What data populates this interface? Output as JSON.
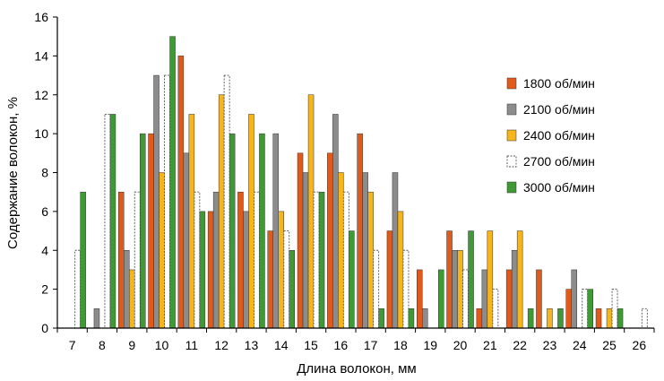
{
  "chart_data": {
    "type": "bar",
    "title": "",
    "xlabel": "Длина волокон, мм",
    "ylabel": "Содержание волокон, %",
    "ylim": [
      0,
      16
    ],
    "yticks": [
      0,
      2,
      4,
      6,
      8,
      10,
      12,
      14,
      16
    ],
    "grid": false,
    "legend_position": "right",
    "categories": [
      "7",
      "8",
      "9",
      "10",
      "11",
      "12",
      "13",
      "14",
      "15",
      "16",
      "17",
      "18",
      "19",
      "20",
      "21",
      "22",
      "23",
      "24",
      "25",
      "26"
    ],
    "series": [
      {
        "name": "1800 об/мин",
        "color": "#e05a1c",
        "style": "solid",
        "values": [
          0,
          0,
          7,
          10,
          14,
          6,
          7,
          5,
          9,
          9,
          10,
          5,
          3,
          5,
          1,
          3,
          3,
          2,
          1,
          0
        ]
      },
      {
        "name": "2100 об/мин",
        "color": "#8c8c8c",
        "style": "solid",
        "values": [
          0,
          1,
          4,
          13,
          9,
          7,
          6,
          10,
          8,
          11,
          8,
          8,
          1,
          4,
          3,
          4,
          0,
          3,
          0,
          0
        ]
      },
      {
        "name": "2400 об/мин",
        "color": "#f5b51b",
        "style": "solid",
        "values": [
          0,
          0,
          3,
          8,
          11,
          12,
          11,
          6,
          12,
          8,
          7,
          6,
          0,
          4,
          5,
          5,
          1,
          0,
          1,
          0
        ]
      },
      {
        "name": "2700 об/мин",
        "color": "#ffffff",
        "style": "dashed-outline",
        "values": [
          4,
          11,
          7,
          13,
          7,
          13,
          7,
          5,
          7,
          7,
          4,
          4,
          0,
          3,
          2,
          0,
          0,
          2,
          2,
          1
        ]
      },
      {
        "name": "3000 об/мин",
        "color": "#3f9a36",
        "style": "solid",
        "values": [
          7,
          11,
          10,
          15,
          6,
          10,
          10,
          4,
          7,
          5,
          1,
          1,
          3,
          5,
          0,
          1,
          1,
          2,
          1,
          0
        ]
      }
    ]
  }
}
